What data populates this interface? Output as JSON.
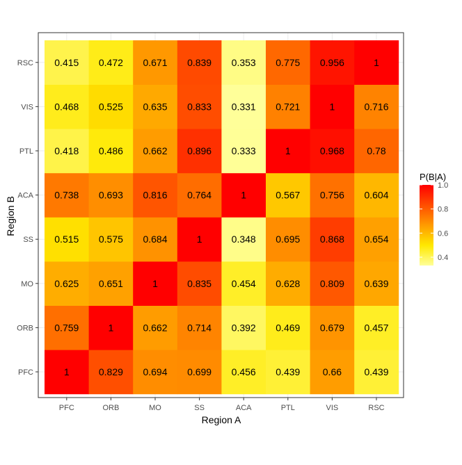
{
  "chart_data": {
    "type": "heatmap",
    "title": "",
    "xlabel": "Region A",
    "ylabel": "Region B",
    "x_categories": [
      "PFC",
      "ORB",
      "MO",
      "SS",
      "ACA",
      "PTL",
      "VIS",
      "RSC"
    ],
    "y_categories": [
      "PFC",
      "ORB",
      "MO",
      "SS",
      "ACA",
      "PTL",
      "VIS",
      "RSC"
    ],
    "values": [
      [
        "1",
        "0.829",
        "0.694",
        "0.699",
        "0.456",
        "0.439",
        "0.66",
        "0.439"
      ],
      [
        "0.759",
        "1",
        "0.662",
        "0.714",
        "0.392",
        "0.469",
        "0.679",
        "0.457"
      ],
      [
        "0.625",
        "0.651",
        "1",
        "0.835",
        "0.454",
        "0.628",
        "0.809",
        "0.639"
      ],
      [
        "0.515",
        "0.575",
        "0.684",
        "1",
        "0.348",
        "0.695",
        "0.868",
        "0.654"
      ],
      [
        "0.738",
        "0.693",
        "0.816",
        "0.764",
        "1",
        "0.567",
        "0.756",
        "0.604"
      ],
      [
        "0.418",
        "0.486",
        "0.662",
        "0.896",
        "0.333",
        "1",
        "0.968",
        "0.78"
      ],
      [
        "0.468",
        "0.525",
        "0.635",
        "0.833",
        "0.331",
        "0.721",
        "1",
        "0.716"
      ],
      [
        "0.415",
        "0.472",
        "0.671",
        "0.839",
        "0.353",
        "0.775",
        "0.956",
        "1"
      ]
    ],
    "legend": {
      "title": "P(B|A)",
      "position": "right",
      "ticks": [
        "0.4",
        "0.6",
        "0.8",
        "1.0"
      ],
      "range": [
        0.331,
        1.0
      ]
    },
    "colors": {
      "low": "#ffff99",
      "mid": "#ffe800",
      "high": "#ff0000",
      "panel_border": "#333333",
      "grid": "#ebebeb"
    },
    "grid": true
  }
}
